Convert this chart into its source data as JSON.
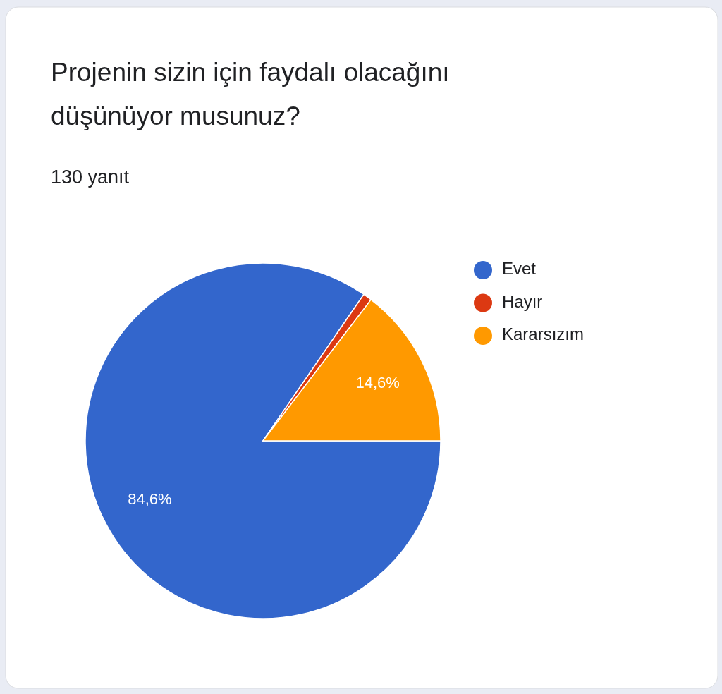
{
  "chart_data": {
    "type": "pie",
    "title": "Projenin sizin için faydalı olacağını düşünüyor musunuz?",
    "subtitle": "130 yanıt",
    "categories": [
      "Evet",
      "Hayır",
      "Kararsızım"
    ],
    "values": [
      84.6,
      0.8,
      14.6
    ],
    "colors": [
      "#3366cc",
      "#dc3912",
      "#ff9900"
    ],
    "value_labels": [
      "84,6%",
      null,
      "14,6%"
    ],
    "legend": "right"
  }
}
